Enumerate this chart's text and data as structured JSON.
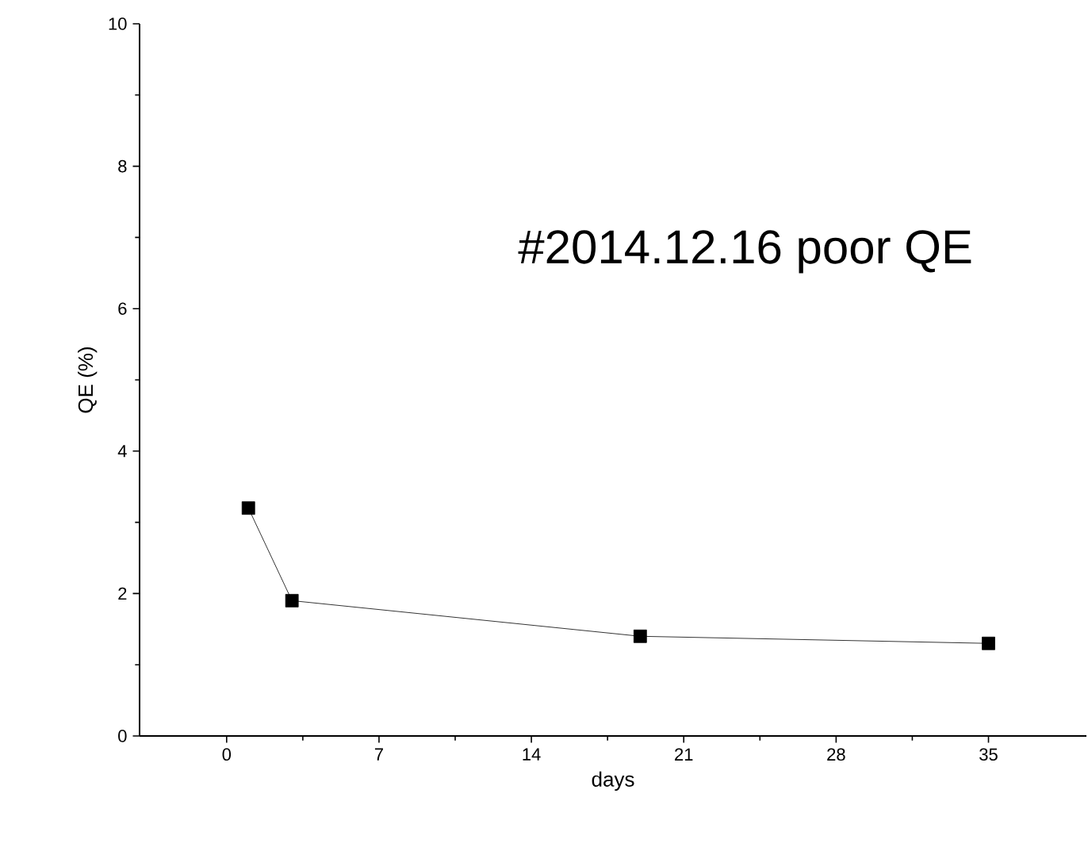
{
  "chart_data": {
    "type": "line",
    "xlabel": "days",
    "ylabel": "QE (%)",
    "annotations": [
      "#2014.12.16 poor QE"
    ],
    "x": [
      1,
      3,
      19,
      35
    ],
    "series": [
      {
        "color": "#000000",
        "values": [
          3.2,
          1.9,
          1.4,
          1.3
        ]
      }
    ],
    "xlim": [
      -4,
      39.5
    ],
    "ylim": [
      0,
      10
    ],
    "xticks": [
      0,
      7,
      14,
      21,
      28,
      35
    ],
    "yticks": [
      0,
      2,
      4,
      6,
      8,
      10
    ],
    "marker": "square",
    "line_style": "solid"
  }
}
